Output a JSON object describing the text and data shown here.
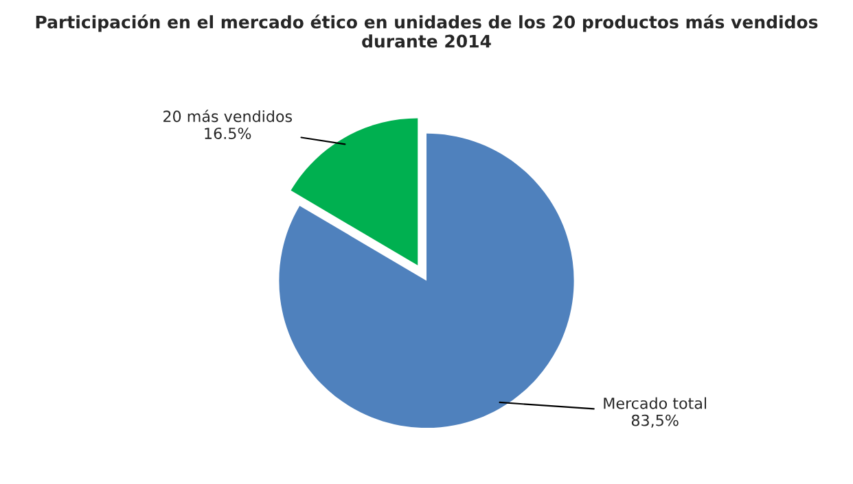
{
  "chart_data": {
    "type": "pie",
    "title": "Participación en el mercado ético en unidades de los 20 productos más vendidos durante 2014",
    "categories": [
      "20 más vendidos",
      "Mercado total"
    ],
    "values": [
      16.5,
      83.5
    ],
    "colors": [
      "#00b050",
      "#4f81bd"
    ],
    "value_labels": [
      "16.5%",
      "83,5%"
    ]
  }
}
